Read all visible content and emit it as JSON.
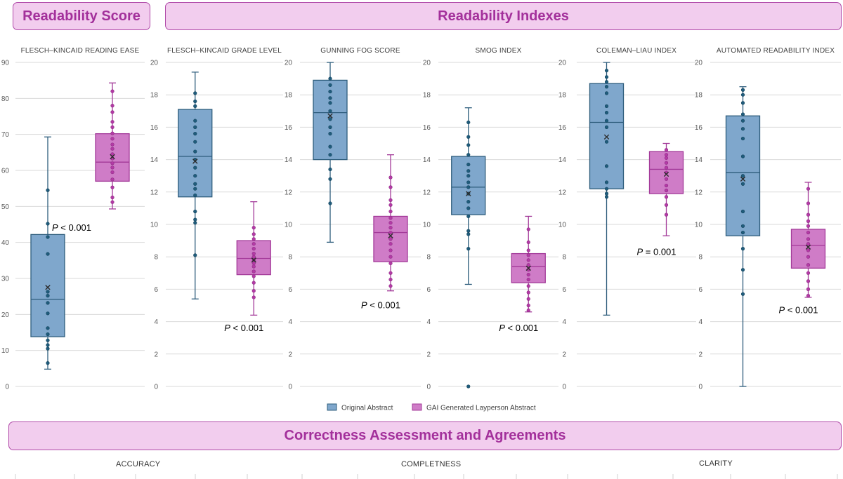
{
  "banners": {
    "score": "Readability Score",
    "indexes": "Readability Indexes",
    "correctness": "Correctness Assessment and Agreements"
  },
  "legend": {
    "original": "Original Abstract",
    "gai": "GAI Generated Layperson Abstract"
  },
  "colors": {
    "original_fill": "#7fa7cc",
    "original_stroke": "#2e5d7c",
    "original_dot": "#1f5c7c",
    "gai_fill": "#cf7cc7",
    "gai_stroke": "#a33a99",
    "gai_dot": "#b43aa6",
    "banner_text": "#a3309b"
  },
  "bottom_labels": [
    "ACCURACY",
    "COMPLETNESS",
    "CLARITY"
  ],
  "chart_data": [
    {
      "type": "box",
      "title": "FLESCH–KINCAID READING EASE",
      "ylim": [
        0,
        90
      ],
      "yticks": [
        0,
        10,
        20,
        30,
        40,
        50,
        60,
        70,
        80,
        90
      ],
      "pvalue_prefix": "P",
      "pvalue": " < 0.001",
      "pvalue_pos": [
        0.5,
        44
      ],
      "series": [
        {
          "name": "Original Abstract",
          "min": 4.8,
          "q1": 13.8,
          "median": 24.2,
          "q3": 42.2,
          "max": 69.3,
          "mean": 27.5,
          "points": [
            6.5,
            10.5,
            11.5,
            12.8,
            14.5,
            16.2,
            20.3,
            23.2,
            25.2,
            26.3,
            36.8,
            41.5,
            45.2,
            54.5
          ]
        },
        {
          "name": "GAI Generated Layperson Abstract",
          "min": 49.3,
          "q1": 57.0,
          "median": 62.3,
          "q3": 70.2,
          "max": 84.3,
          "mean": 63.8,
          "points": [
            51.2,
            52.5,
            55.3,
            57.5,
            59.5,
            60.8,
            62.0,
            63.3,
            64.5,
            66.0,
            67.2,
            68.8,
            70.3,
            72.0,
            73.5,
            76.2,
            78.0,
            82.0
          ]
        }
      ]
    },
    {
      "type": "box",
      "title": "FLESCH–KINCAID GRADE LEVEL",
      "ylim": [
        0,
        20
      ],
      "yticks": [
        0,
        2,
        4,
        6,
        8,
        10,
        12,
        14,
        16,
        18,
        20
      ],
      "pvalue_prefix": "P",
      "pvalue": " < 0.001",
      "pvalue_pos": [
        1.5,
        3.6
      ],
      "series": [
        {
          "name": "Original Abstract",
          "min": 5.4,
          "q1": 11.7,
          "median": 14.2,
          "q3": 17.1,
          "max": 19.4,
          "mean": 13.9,
          "points": [
            8.1,
            10.1,
            10.3,
            10.8,
            11.8,
            12.2,
            12.5,
            13.0,
            13.5,
            14.0,
            14.5,
            15.1,
            15.6,
            16.0,
            16.4,
            17.3,
            17.6,
            18.1
          ]
        },
        {
          "name": "GAI Generated Layperson Abstract",
          "min": 4.4,
          "q1": 6.9,
          "median": 7.9,
          "q3": 9.0,
          "max": 11.4,
          "mean": 7.8,
          "points": [
            5.5,
            5.9,
            6.4,
            6.8,
            7.1,
            7.4,
            7.6,
            7.8,
            8.0,
            8.2,
            8.5,
            8.8,
            9.1,
            9.4,
            9.8
          ]
        }
      ]
    },
    {
      "type": "box",
      "title": "GUNNING FOG SCORE",
      "ylim": [
        0,
        20
      ],
      "yticks": [
        0,
        2,
        4,
        6,
        8,
        10,
        12,
        14,
        16,
        18,
        20
      ],
      "pvalue_prefix": "P",
      "pvalue": " < 0.001",
      "pvalue_pos": [
        1.5,
        5.0
      ],
      "series": [
        {
          "name": "Original Abstract",
          "min": 8.9,
          "q1": 14.0,
          "median": 16.9,
          "q3": 18.9,
          "max": 20.0,
          "mean": 16.7,
          "points": [
            11.3,
            12.8,
            13.4,
            14.3,
            14.8,
            15.6,
            16.0,
            16.5,
            17.0,
            17.5,
            17.8,
            18.2,
            18.6,
            19.0
          ]
        },
        {
          "name": "GAI Generated Layperson Abstract",
          "min": 5.9,
          "q1": 7.7,
          "median": 9.5,
          "q3": 10.5,
          "max": 14.3,
          "mean": 9.3,
          "points": [
            6.2,
            6.6,
            7.0,
            7.6,
            8.0,
            8.4,
            8.8,
            9.1,
            9.5,
            9.8,
            10.1,
            10.4,
            10.8,
            11.2,
            11.5,
            12.3,
            12.9
          ]
        }
      ]
    },
    {
      "type": "box",
      "title": "SMOG INDEX",
      "ylim": [
        0,
        20
      ],
      "yticks": [
        0,
        2,
        4,
        6,
        8,
        10,
        12,
        14,
        16,
        18,
        20
      ],
      "pvalue_prefix": "P",
      "pvalue": " < 0.001",
      "pvalue_pos": [
        1.5,
        3.6
      ],
      "series": [
        {
          "name": "Original Abstract",
          "min": 6.3,
          "q1": 10.6,
          "median": 12.3,
          "q3": 14.2,
          "max": 17.2,
          "mean": 11.9,
          "points": [
            0.0,
            8.5,
            9.4,
            9.6,
            10.5,
            11.0,
            11.4,
            11.9,
            12.3,
            12.6,
            13.0,
            13.3,
            13.7,
            14.3,
            14.9,
            15.4,
            16.3
          ]
        },
        {
          "name": "GAI Generated Layperson Abstract",
          "min": 4.6,
          "q1": 6.4,
          "median": 7.4,
          "q3": 8.2,
          "max": 10.5,
          "mean": 7.3,
          "points": [
            4.7,
            5.0,
            5.4,
            5.8,
            6.2,
            6.6,
            6.9,
            7.2,
            7.5,
            7.8,
            8.1,
            8.4,
            8.9,
            9.7
          ]
        }
      ]
    },
    {
      "type": "box",
      "title": "COLEMAN–LIAU INDEX",
      "ylim": [
        0,
        20
      ],
      "yticks": [
        0,
        2,
        4,
        6,
        8,
        10,
        12,
        14,
        16,
        18,
        20
      ],
      "pvalue_prefix": "P",
      "pvalue": " = 0.001",
      "pvalue_pos": [
        1.5,
        8.3
      ],
      "series": [
        {
          "name": "Original Abstract",
          "min": 4.4,
          "q1": 12.2,
          "median": 16.3,
          "q3": 18.7,
          "max": 20.0,
          "mean": 15.4,
          "points": [
            11.7,
            11.9,
            12.2,
            12.6,
            13.6,
            15.1,
            16.0,
            16.4,
            16.9,
            17.3,
            18.1,
            18.5,
            18.8,
            19.1,
            19.5
          ]
        },
        {
          "name": "GAI Generated Layperson Abstract",
          "min": 9.3,
          "q1": 11.9,
          "median": 13.4,
          "q3": 14.5,
          "max": 15.0,
          "mean": 13.1,
          "points": [
            10.6,
            11.2,
            11.7,
            12.1,
            12.4,
            12.8,
            13.2,
            13.5,
            13.8,
            14.1,
            14.3,
            14.6
          ]
        }
      ]
    },
    {
      "type": "box",
      "title": "AUTOMATED READABILITY INDEX",
      "ylim": [
        0,
        20
      ],
      "yticks": [
        0,
        2,
        4,
        6,
        8,
        10,
        12,
        14,
        16,
        18,
        20
      ],
      "pvalue_prefix": "P",
      "pvalue": " < 0.001",
      "pvalue_pos": [
        1.5,
        4.7
      ],
      "series": [
        {
          "name": "Original Abstract",
          "min": 0.0,
          "q1": 9.3,
          "median": 13.2,
          "q3": 16.7,
          "max": 18.5,
          "mean": 12.8,
          "points": [
            5.7,
            7.2,
            8.5,
            9.5,
            9.9,
            10.8,
            12.5,
            13.0,
            14.2,
            15.3,
            15.9,
            16.4,
            16.8,
            17.5,
            18.0,
            18.3
          ]
        },
        {
          "name": "GAI Generated Layperson Abstract",
          "min": 5.5,
          "q1": 7.3,
          "median": 8.7,
          "q3": 9.7,
          "max": 12.6,
          "mean": 8.6,
          "points": [
            5.6,
            6.0,
            6.5,
            7.0,
            7.5,
            8.0,
            8.4,
            8.8,
            9.1,
            9.5,
            9.9,
            10.2,
            10.6,
            11.3,
            12.2
          ]
        }
      ]
    }
  ]
}
